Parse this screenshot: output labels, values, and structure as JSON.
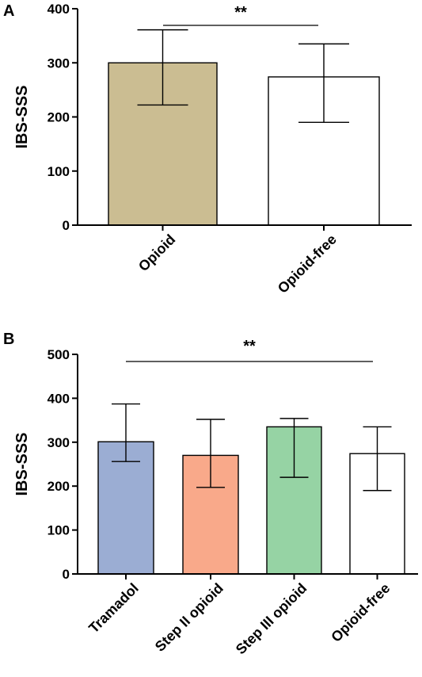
{
  "chart_data": [
    {
      "type": "bar",
      "panel": "A",
      "ylabel": "IBS-SSS",
      "ylim": [
        0,
        400
      ],
      "yticks": [
        "0",
        "100",
        "200",
        "300",
        "400"
      ],
      "categories": [
        "Opioid",
        "Opioid-free"
      ],
      "values": [
        300,
        274
      ],
      "error_low": [
        222,
        190
      ],
      "error_high": [
        361,
        335
      ],
      "colors": [
        "#cbbd92",
        "#ffffff"
      ],
      "significance": {
        "label": "**",
        "from": 0,
        "to": 1
      }
    },
    {
      "type": "bar",
      "panel": "B",
      "ylabel": "IBS-SSS",
      "ylim": [
        0,
        500
      ],
      "yticks": [
        "0",
        "100",
        "200",
        "300",
        "400",
        "500"
      ],
      "categories": [
        "Tramadol",
        "Step II opioid",
        "Step III opioid",
        "Opioid-free"
      ],
      "values": [
        301,
        270,
        335,
        274
      ],
      "error_low": [
        256,
        197,
        220,
        190
      ],
      "error_high": [
        387,
        352,
        354,
        335
      ],
      "colors": [
        "#9badd3",
        "#f9a98a",
        "#96d3a4",
        "#ffffff"
      ],
      "significance": {
        "label": "**",
        "from": 0,
        "to": 3
      }
    }
  ]
}
